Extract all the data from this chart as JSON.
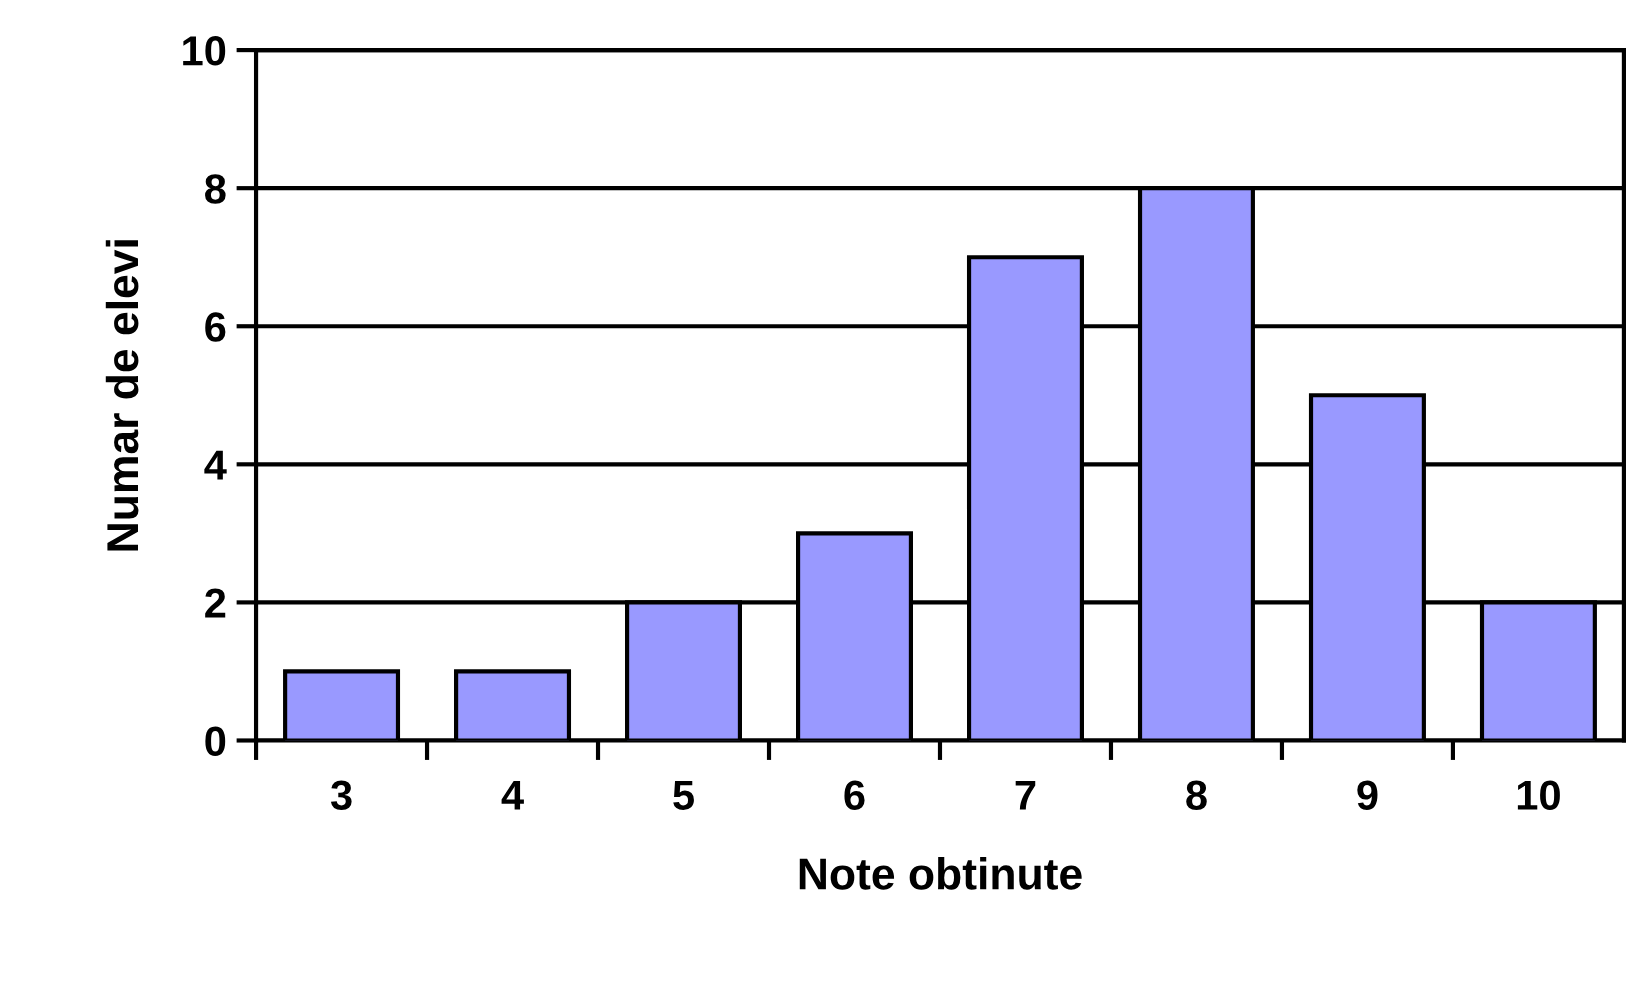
{
  "chart_data": {
    "type": "bar",
    "xlabel": "Note obtinute",
    "ylabel": "Numar de elevi",
    "categories": [
      "3",
      "4",
      "5",
      "6",
      "7",
      "8",
      "9",
      "10"
    ],
    "values": [
      1,
      1,
      2,
      3,
      7,
      8,
      5,
      2
    ],
    "color": "#9999ff",
    "ylim": [
      0,
      10
    ],
    "yticks": [
      0,
      2,
      4,
      6,
      8,
      10
    ],
    "grid": "y",
    "legend": false
  }
}
